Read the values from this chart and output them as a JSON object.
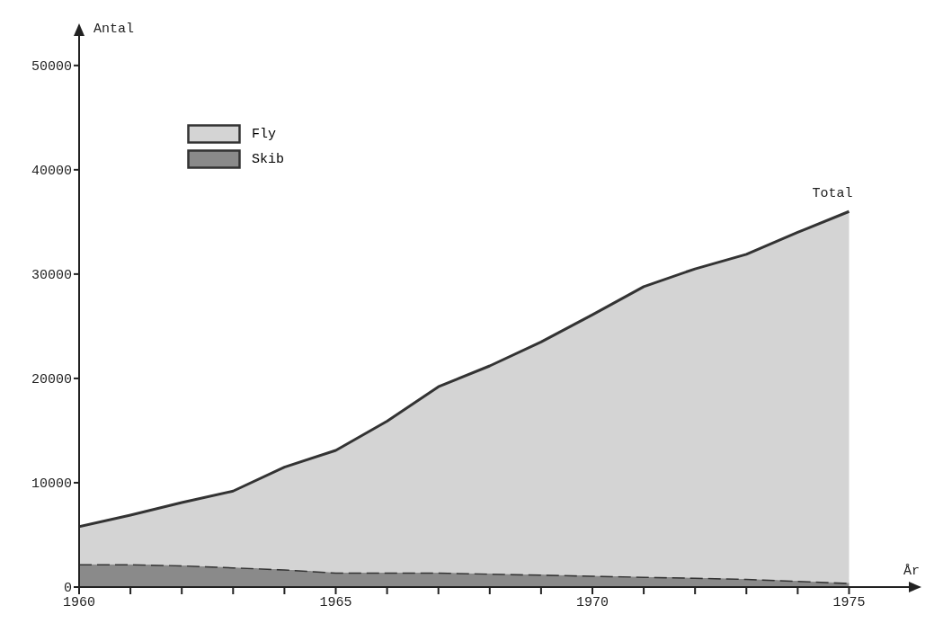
{
  "chart_data": {
    "type": "area",
    "stacked": true,
    "xlabel": "År",
    "ylabel": "Antal",
    "x": [
      1960,
      1961,
      1962,
      1963,
      1964,
      1965,
      1966,
      1967,
      1968,
      1969,
      1970,
      1971,
      1972,
      1973,
      1974,
      1975
    ],
    "series": [
      {
        "name": "Skib",
        "color": "#8a8a8a",
        "line_style": "dashed",
        "values": [
          2200,
          2200,
          2100,
          1900,
          1700,
          1400,
          1400,
          1400,
          1300,
          1200,
          1100,
          1000,
          900,
          800,
          600,
          400
        ]
      },
      {
        "name": "Fly",
        "color": "#d4d4d4",
        "line_style": "solid",
        "values": [
          3600,
          4700,
          6000,
          7300,
          9800,
          11700,
          14500,
          17800,
          19900,
          22300,
          25000,
          27800,
          29600,
          31100,
          33400,
          35600
        ]
      }
    ],
    "xlim": [
      1960,
      1976.2
    ],
    "ylim": [
      0,
      53000
    ],
    "xticks": [
      1960,
      {
        "value": 1961,
        "label": null
      },
      {
        "value": 1962,
        "label": null
      },
      {
        "value": 1963,
        "label": null
      },
      {
        "value": 1964,
        "label": null
      },
      1965,
      {
        "value": 1966,
        "label": null
      },
      {
        "value": 1967,
        "label": null
      },
      {
        "value": 1968,
        "label": null
      },
      {
        "value": 1969,
        "label": null
      },
      1970,
      {
        "value": 1971,
        "label": null
      },
      {
        "value": 1972,
        "label": null
      },
      {
        "value": 1973,
        "label": null
      },
      {
        "value": 1974,
        "label": null
      },
      1975
    ],
    "yticks": [
      0,
      10000,
      20000,
      30000,
      40000,
      50000
    ],
    "annotations": [
      {
        "text": "Total",
        "x": 1975,
        "y": 36000
      }
    ],
    "legend": "top left",
    "grid": false
  }
}
